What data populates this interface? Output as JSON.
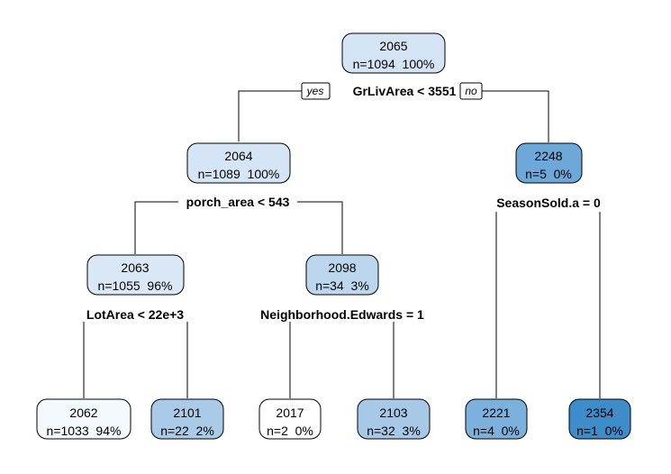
{
  "tree": {
    "root": {
      "value": "2065",
      "stats": "n=1094  100%",
      "fill": "#d4e4f4"
    },
    "root_split": "GrLivArea < 3551",
    "yes_label": "yes",
    "no_label": "no",
    "left": {
      "value": "2064",
      "stats": "n=1089  100%",
      "fill": "#d6e5f5"
    },
    "left_split": "porch_area < 543",
    "right": {
      "value": "2248",
      "stats": "n=5  0%",
      "fill": "#6ea8d8"
    },
    "right_split": "SeasonSold.a = 0",
    "left_left": {
      "value": "2063",
      "stats": "n=1055  96%",
      "fill": "#dae8f6"
    },
    "left_left_split": "LotArea < 22e+3",
    "left_right": {
      "value": "2098",
      "stats": "n=34  3%",
      "fill": "#bcd6ee"
    },
    "left_right_split": "Neighborhood.Edwards = 1",
    "leaves": [
      {
        "value": "2062",
        "stats": "n=1033  94%",
        "fill": "#f4f9fe"
      },
      {
        "value": "2101",
        "stats": "n=22  2%",
        "fill": "#a9cbe8"
      },
      {
        "value": "2017",
        "stats": "n=2  0%",
        "fill": "#ffffff"
      },
      {
        "value": "2103",
        "stats": "n=32  3%",
        "fill": "#a7c9e7"
      },
      {
        "value": "2221",
        "stats": "n=4  0%",
        "fill": "#7db1dd"
      },
      {
        "value": "2354",
        "stats": "n=1  0%",
        "fill": "#3e8cc9"
      }
    ]
  }
}
